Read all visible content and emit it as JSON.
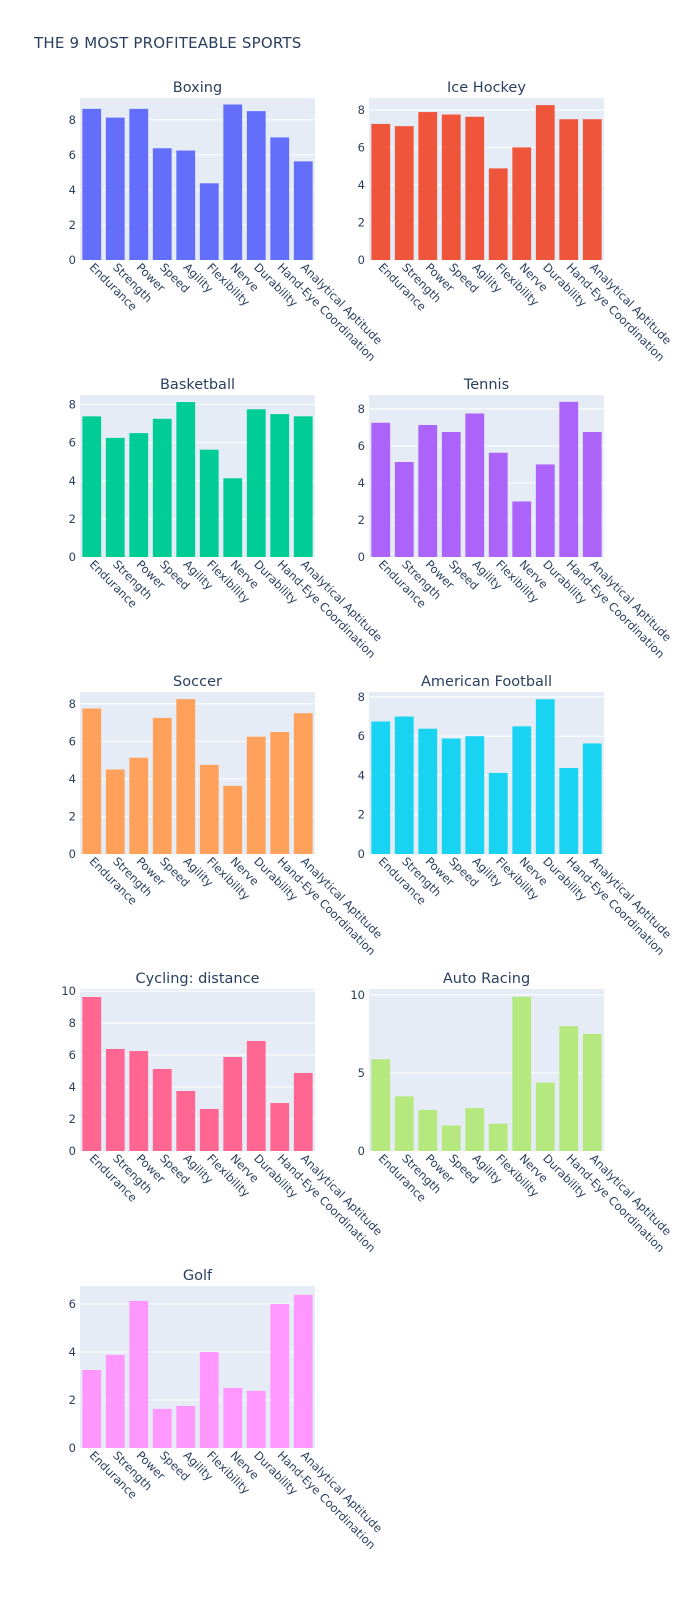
{
  "title": "THE 9 MOST PROFITEABLE SPORTS",
  "chart_data": {
    "type": "bar",
    "categories": [
      "Endurance",
      "Strength",
      "Power",
      "Speed",
      "Agility",
      "Flexibility",
      "Nerve",
      "Durability",
      "Hand-Eye Coordination",
      "Analytical Aptitude"
    ],
    "plot_background": "#e5ecf6",
    "grid": true,
    "subplots": [
      {
        "title": "Boxing",
        "color": "#636efa",
        "ylim": [
          0,
          9.25
        ],
        "yticks": [
          0,
          2,
          4,
          6,
          8
        ],
        "values": [
          8.63,
          8.13,
          8.63,
          6.38,
          6.25,
          4.38,
          8.88,
          8.5,
          7.0,
          5.63
        ]
      },
      {
        "title": "Ice Hockey",
        "color": "#ef553b",
        "ylim": [
          0,
          8.63
        ],
        "yticks": [
          0,
          2,
          4,
          6,
          8
        ],
        "values": [
          7.25,
          7.13,
          7.88,
          7.75,
          7.63,
          4.88,
          6.0,
          8.25,
          7.5,
          7.5
        ]
      },
      {
        "title": "Basketball",
        "color": "#00cc96",
        "ylim": [
          0,
          8.5
        ],
        "yticks": [
          0,
          2,
          4,
          6,
          8
        ],
        "values": [
          7.38,
          6.25,
          6.5,
          7.25,
          8.13,
          5.63,
          4.13,
          7.75,
          7.5,
          7.38
        ]
      },
      {
        "title": "Tennis",
        "color": "#ab63fa",
        "ylim": [
          0,
          8.75
        ],
        "yticks": [
          0,
          2,
          4,
          6,
          8
        ],
        "values": [
          7.25,
          5.13,
          7.13,
          6.75,
          7.75,
          5.63,
          3.0,
          5.0,
          8.38,
          6.75
        ]
      },
      {
        "title": "Soccer",
        "color": "#ffa15a",
        "ylim": [
          0,
          8.63
        ],
        "yticks": [
          0,
          2,
          4,
          6,
          8
        ],
        "values": [
          7.75,
          4.5,
          5.13,
          7.25,
          8.25,
          4.75,
          3.63,
          6.25,
          6.5,
          7.5
        ]
      },
      {
        "title": "American Football",
        "color": "#19d3f3",
        "ylim": [
          0,
          8.25
        ],
        "yticks": [
          0,
          2,
          4,
          6,
          8
        ],
        "values": [
          6.75,
          7.0,
          6.38,
          5.88,
          6.0,
          4.13,
          6.5,
          7.88,
          4.38,
          5.63
        ]
      },
      {
        "title": "Cycling: distance",
        "color": "#ff6692",
        "ylim": [
          0,
          10.13
        ],
        "yticks": [
          0,
          2,
          4,
          6,
          8,
          10
        ],
        "values": [
          9.63,
          6.38,
          6.25,
          5.13,
          3.75,
          2.63,
          5.88,
          6.88,
          3.0,
          4.88
        ]
      },
      {
        "title": "Auto Racing",
        "color": "#b6e880",
        "ylim": [
          0,
          10.38
        ],
        "yticks": [
          0,
          5,
          10
        ],
        "values": [
          5.88,
          3.5,
          2.63,
          1.63,
          2.75,
          1.75,
          9.88,
          4.38,
          8.0,
          7.5
        ]
      },
      {
        "title": "Golf",
        "color": "#ff97ff",
        "ylim": [
          0,
          6.75
        ],
        "yticks": [
          0,
          2,
          4,
          6
        ],
        "values": [
          3.25,
          3.88,
          6.13,
          1.63,
          1.75,
          4.0,
          2.5,
          2.38,
          6.0,
          6.38
        ]
      }
    ]
  }
}
